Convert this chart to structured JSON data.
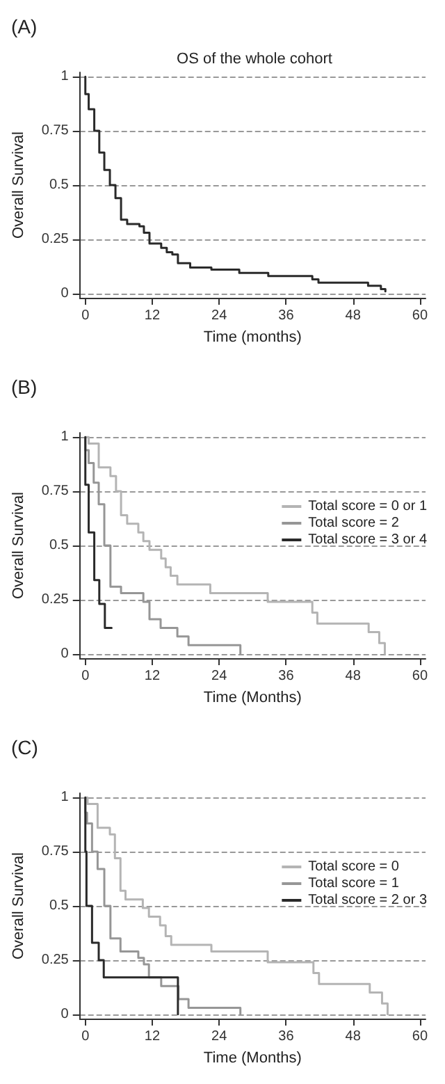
{
  "chart_data": [
    {
      "type": "step",
      "title": "OS of the whole cohort",
      "xlabel": "Time (months)",
      "ylabel": "Overall Survival",
      "annotations": [
        "(A)"
      ],
      "xlim": [
        -1,
        61
      ],
      "ylim": [
        -0.02,
        1.02
      ],
      "xticks": [
        0,
        12,
        24,
        36,
        48,
        60
      ],
      "yticks": [
        0,
        0.25,
        0.5,
        0.75,
        1
      ],
      "grid": "y",
      "legend": false,
      "marker": "none",
      "line_style": "solid",
      "series": [
        {
          "color": "#2a2a2a",
          "x": [
            0,
            0,
            0.6,
            1.6,
            2.5,
            3.4,
            4.4,
            5.4,
            6.4,
            7.5,
            9.7,
            10.5,
            11.5,
            13.6,
            14.6,
            15.6,
            16.6,
            18.8,
            22.6,
            27.6,
            32.8,
            40.7,
            41.8,
            50.7,
            53,
            53.8
          ],
          "values": [
            1,
            0.92,
            0.85,
            0.75,
            0.65,
            0.57,
            0.5,
            0.44,
            0.34,
            0.32,
            0.31,
            0.28,
            0.23,
            0.21,
            0.19,
            0.18,
            0.14,
            0.12,
            0.11,
            0.095,
            0.08,
            0.065,
            0.05,
            0.035,
            0.02,
            0.01
          ]
        }
      ]
    },
    {
      "type": "step",
      "xlabel": "Time (Months)",
      "ylabel": "Overall Survival",
      "annotations": [
        "(B)"
      ],
      "xlim": [
        -1,
        61
      ],
      "ylim": [
        -0.02,
        1.02
      ],
      "xticks": [
        0,
        12,
        24,
        36,
        48,
        60
      ],
      "yticks": [
        0,
        0.25,
        0.5,
        0.75,
        1
      ],
      "grid": "y",
      "legend": "right",
      "marker": "none",
      "line_style": "solid",
      "series": [
        {
          "name": "Total score = 0 or 1",
          "color": "#b4b4b4",
          "x": [
            0,
            0.6,
            2.4,
            4.5,
            5.5,
            6.4,
            7.5,
            9.5,
            10.4,
            11.5,
            13.6,
            14.4,
            15.3,
            16.5,
            22.4,
            32.7,
            40.7,
            41.6,
            50.8,
            52.7,
            53.7
          ],
          "values": [
            1,
            0.97,
            0.86,
            0.82,
            0.75,
            0.64,
            0.6,
            0.56,
            0.52,
            0.48,
            0.44,
            0.4,
            0.36,
            0.32,
            0.28,
            0.24,
            0.19,
            0.14,
            0.1,
            0.05,
            0
          ]
        },
        {
          "name": "Total score = 2",
          "color": "#969696",
          "x": [
            0,
            0,
            0.6,
            1.5,
            2.4,
            3.4,
            4.5,
            6.4,
            10.4,
            11.5,
            13.5,
            16.5,
            18.5,
            27.8
          ],
          "values": [
            1,
            0.94,
            0.88,
            0.79,
            0.69,
            0.5,
            0.31,
            0.28,
            0.24,
            0.16,
            0.12,
            0.08,
            0.04,
            0
          ]
        },
        {
          "name": "Total score = 3 or 4",
          "color": "#2a2a2a",
          "x": [
            0,
            0,
            0.6,
            1.6,
            2.5,
            3.5,
            4.7
          ],
          "values": [
            1,
            0.78,
            0.56,
            0.34,
            0.23,
            0.12,
            0.12
          ]
        }
      ]
    },
    {
      "type": "step",
      "xlabel": "Time (Months)",
      "ylabel": "Overall Survival",
      "annotations": [
        "(C)"
      ],
      "xlim": [
        -1,
        61
      ],
      "ylim": [
        -0.02,
        1.02
      ],
      "xticks": [
        0,
        12,
        24,
        36,
        48,
        60
      ],
      "yticks": [
        0,
        0.25,
        0.5,
        0.75,
        1
      ],
      "grid": "y",
      "legend": "right",
      "marker": "none",
      "line_style": "solid",
      "series": [
        {
          "name": "Total score = 0",
          "color": "#b4b4b4",
          "x": [
            0,
            0.4,
            2.2,
            4.4,
            5.3,
            6.3,
            7.2,
            10.3,
            11.4,
            13.4,
            14.4,
            15.4,
            22.6,
            32.7,
            40.9,
            41.9,
            51,
            53.2,
            54.2
          ],
          "values": [
            1,
            0.97,
            0.86,
            0.83,
            0.72,
            0.57,
            0.53,
            0.49,
            0.45,
            0.41,
            0.36,
            0.32,
            0.29,
            0.24,
            0.19,
            0.14,
            0.1,
            0.05,
            0
          ]
        },
        {
          "name": "Total score = 1",
          "color": "#969696",
          "x": [
            0,
            0,
            0.3,
            1.2,
            2.2,
            3.4,
            4.5,
            6.3,
            9.5,
            10.5,
            11.4,
            13.6,
            16.7,
            18.5,
            27.8
          ],
          "values": [
            1,
            0.93,
            0.88,
            0.75,
            0.67,
            0.5,
            0.35,
            0.29,
            0.26,
            0.23,
            0.17,
            0.13,
            0.07,
            0.03,
            0
          ]
        },
        {
          "name": "Total score = 2 or 3",
          "color": "#2a2a2a",
          "x": [
            0,
            0,
            0.2,
            1.2,
            2.4,
            3.3,
            16.6
          ],
          "values": [
            1,
            0.75,
            0.5,
            0.33,
            0.25,
            0.17,
            0
          ]
        }
      ]
    }
  ]
}
